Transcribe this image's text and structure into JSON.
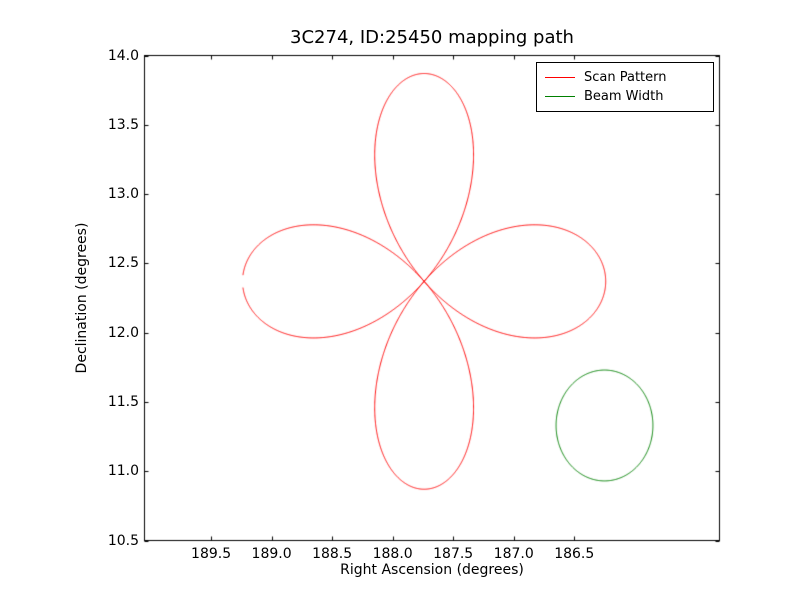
{
  "chart_data": {
    "type": "line",
    "title": "3C274, ID:25450 mapping path",
    "xlabel": "Right Ascension (degrees)",
    "ylabel": "Declination (degrees)",
    "x_axis_inverted": true,
    "xlim": [
      190.05,
      185.3
    ],
    "ylim": [
      10.5,
      14.0
    ],
    "xticks": [
      189.5,
      189.0,
      188.5,
      188.0,
      187.5,
      187.0,
      186.5
    ],
    "yticks": [
      10.5,
      11.0,
      11.5,
      12.0,
      12.5,
      13.0,
      13.5,
      14.0
    ],
    "grid": false,
    "legend_position": "upper right",
    "series": [
      {
        "name": "Scan Pattern",
        "color": "#ff0000",
        "shape": "rose",
        "center": {
          "ra": 187.74,
          "dec": 12.37
        },
        "amplitude": 1.5,
        "petals": 4,
        "gap_radians": 0.03
      },
      {
        "name": "Beam Width",
        "color": "#008000",
        "shape": "circle",
        "center": {
          "ra": 186.25,
          "dec": 11.33
        },
        "radius": 0.4
      }
    ]
  }
}
